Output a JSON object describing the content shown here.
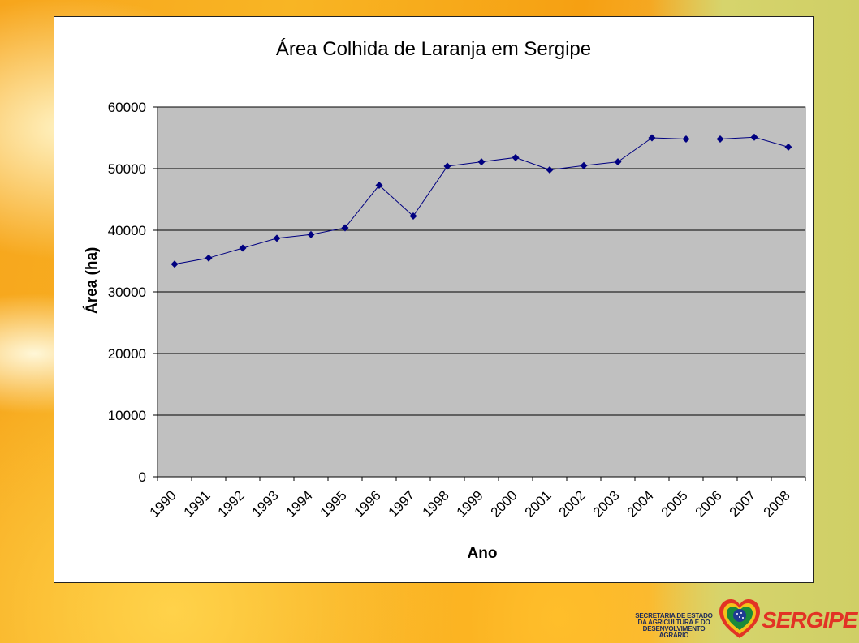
{
  "slide": {
    "footer_text": "SECRETARIA DE ESTADO DA AGRICULTURA E DO DESENVOLVIMENTO AGRÁRIO",
    "brand": "SERGIPE",
    "logo_icon": "heart-flag-logo-icon"
  },
  "colors": {
    "plot_area": "#c0c0c0",
    "series": "#000080",
    "grid": "#000000"
  },
  "chart_data": {
    "type": "line",
    "title": "Área Colhida de Laranja em Sergipe",
    "xlabel": "Ano",
    "ylabel": "Área (ha)",
    "ylim": [
      0,
      60000
    ],
    "yticks": [
      "0",
      "10000",
      "20000",
      "30000",
      "40000",
      "50000",
      "60000"
    ],
    "categories": [
      "1990",
      "1991",
      "1992",
      "1993",
      "1994",
      "1995",
      "1996",
      "1997",
      "1998",
      "1999",
      "2000",
      "2001",
      "2002",
      "2003",
      "2004",
      "2005",
      "2006",
      "2007",
      "2008"
    ],
    "series": [
      {
        "values": [
          34500,
          35500,
          37100,
          38700,
          39300,
          40400,
          47300,
          42300,
          50400,
          51100,
          51800,
          49800,
          50500,
          51100,
          55000,
          54800,
          54800,
          55100,
          53500
        ]
      }
    ],
    "grid": true,
    "legend": "none",
    "marker": "diamond"
  }
}
